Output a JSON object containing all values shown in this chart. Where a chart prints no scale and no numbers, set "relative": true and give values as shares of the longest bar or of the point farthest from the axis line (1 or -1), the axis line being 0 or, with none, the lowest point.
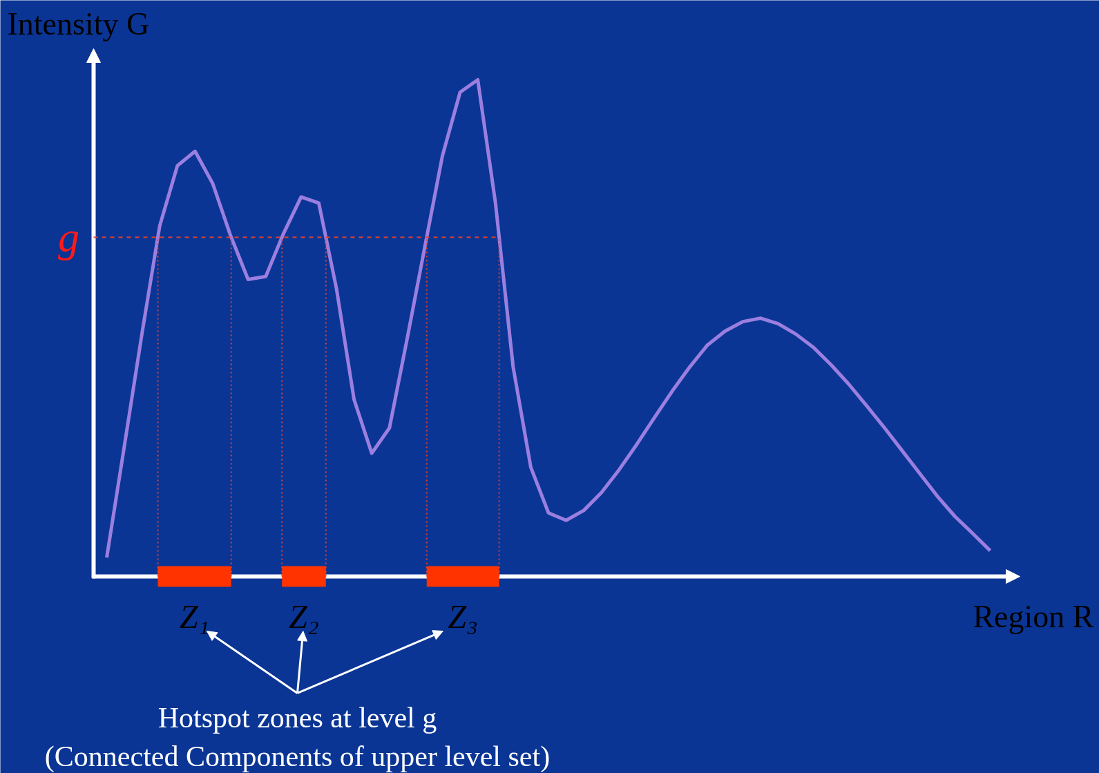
{
  "chart_data": {
    "type": "line",
    "relative": true,
    "line_style": "solid",
    "xlabel": "Region R",
    "ylabel": "Intensity G",
    "categories": [
      null,
      null,
      null,
      null,
      null,
      null,
      null,
      null,
      null,
      null,
      null,
      null,
      null,
      null,
      null,
      null,
      null,
      null,
      null,
      null,
      null,
      null,
      null,
      null,
      null,
      null,
      null,
      null,
      null,
      null,
      null,
      null,
      null,
      null,
      null,
      null,
      null,
      null,
      null,
      null,
      null,
      null,
      null,
      null,
      null,
      null,
      null,
      null,
      null,
      null,
      null
    ],
    "series": [
      {
        "color": "#9b7fe0",
        "values": [
          0.038,
          0.263,
          0.49,
          0.706,
          0.827,
          0.856,
          0.791,
          0.687,
          0.598,
          0.604,
          0.69,
          0.764,
          0.752,
          0.58,
          0.356,
          0.248,
          0.299,
          0.478,
          0.663,
          0.847,
          0.975,
          1.0,
          0.752,
          0.422,
          0.22,
          0.128,
          0.113,
          0.133,
          0.169,
          0.215,
          0.266,
          0.32,
          0.373,
          0.422,
          0.466,
          0.494,
          0.513,
          0.52,
          0.509,
          0.488,
          0.461,
          0.426,
          0.387,
          0.344,
          0.3,
          0.254,
          0.208,
          0.162,
          0.121,
          0.087,
          0.052
        ]
      }
    ],
    "ref_lines": [
      {
        "axis": "y",
        "value": 0.683,
        "label": "g",
        "color": "#e8402a",
        "line_style": "dashed"
      }
    ],
    "annotations": [
      "Z₁",
      "Z₂",
      "Z₃",
      "Hotspot zones at level g",
      "(Connected Components of upper level set)"
    ]
  }
}
